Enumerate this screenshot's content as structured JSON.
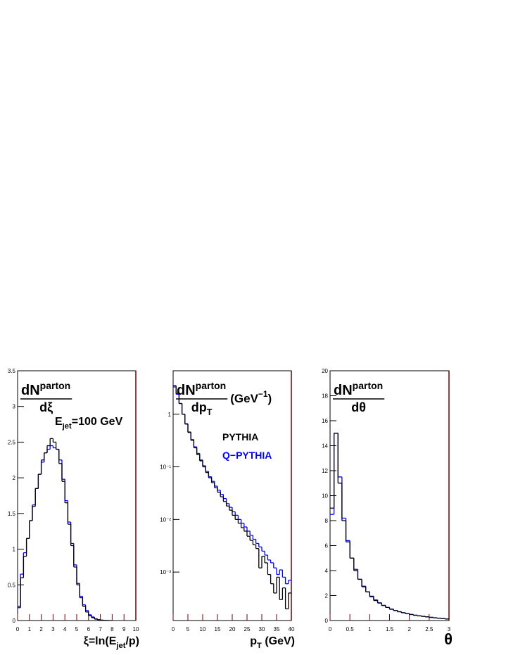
{
  "chart_data": [
    {
      "type": "histogram",
      "y_label": {
        "num": "dN",
        "sup": "parton",
        "den": "dξ"
      },
      "x_label": {
        "main": "ξ=ln(E",
        "sub": "jet",
        "end": "/p)"
      },
      "annotation": {
        "main": "E",
        "sub": "jet",
        "end": "=100 GeV"
      },
      "xlim": [
        0,
        10
      ],
      "xticks": [
        0,
        1,
        2,
        3,
        4,
        5,
        6,
        7,
        8,
        9,
        10
      ],
      "ylim": [
        0,
        3.5
      ],
      "yticks": [
        0,
        0.5,
        1,
        1.5,
        2,
        2.5,
        3,
        3.5
      ],
      "bins": [
        0,
        0.25,
        0.5,
        0.75,
        1,
        1.25,
        1.5,
        1.75,
        2,
        2.25,
        2.5,
        2.75,
        3,
        3.25,
        3.5,
        3.75,
        4,
        4.25,
        4.5,
        4.75,
        5,
        5.25,
        5.5,
        5.75,
        6,
        6.25,
        6.5,
        6.75,
        7,
        7.25,
        7.5,
        7.75,
        8
      ],
      "series": [
        {
          "color": "#000000",
          "values": [
            0.2,
            0.6,
            0.9,
            1.15,
            1.4,
            1.6,
            1.85,
            2.05,
            2.25,
            2.35,
            2.45,
            2.55,
            2.5,
            2.4,
            2.2,
            1.95,
            1.65,
            1.35,
            1.05,
            0.75,
            0.5,
            0.32,
            0.2,
            0.12,
            0.07,
            0.04,
            0.02,
            0.01,
            0.005,
            0.002,
            0.001,
            0
          ]
        },
        {
          "color": "#0000ff",
          "values": [
            0.18,
            0.65,
            0.95,
            1.15,
            1.4,
            1.62,
            1.85,
            2.05,
            2.22,
            2.35,
            2.4,
            2.45,
            2.42,
            2.4,
            2.25,
            1.98,
            1.68,
            1.38,
            1.08,
            0.78,
            0.52,
            0.34,
            0.22,
            0.14,
            0.08,
            0.05,
            0.025,
            0.012,
            0.006,
            0.003,
            0.001,
            0
          ]
        }
      ]
    },
    {
      "type": "histogram",
      "log_y": true,
      "y_label": {
        "num": "dN",
        "sup": "parton",
        "den": "dp",
        "den_sub": "T",
        "unit": "(GeV",
        "unit_sup": "−1",
        "unit_end": ")"
      },
      "x_label": {
        "main": "p",
        "sub": "T",
        "end": " (GeV)"
      },
      "xlim": [
        0,
        40
      ],
      "xticks": [
        0,
        5,
        10,
        15,
        20,
        25,
        30,
        35,
        40
      ],
      "ylim": [
        0.00012,
        6.7
      ],
      "yticks": [
        {
          "value": 0.001,
          "label": "10⁻³"
        },
        {
          "value": 0.01,
          "label": "10⁻²"
        },
        {
          "value": 0.1,
          "label": "10⁻¹"
        },
        1
      ],
      "bins": [
        0,
        1,
        2,
        3,
        4,
        5,
        6,
        7,
        8,
        9,
        10,
        11,
        12,
        13,
        14,
        15,
        16,
        17,
        18,
        19,
        20,
        21,
        22,
        23,
        24,
        25,
        26,
        27,
        28,
        29,
        30,
        31,
        32,
        33,
        34,
        35,
        36,
        37,
        38,
        39,
        40
      ],
      "series": [
        {
          "name": "PYTHIA",
          "color": "#000000",
          "values": [
            3.5,
            2.5,
            1.6,
            1.0,
            0.65,
            0.45,
            0.32,
            0.23,
            0.17,
            0.13,
            0.1,
            0.078,
            0.062,
            0.05,
            0.04,
            0.033,
            0.027,
            0.022,
            0.018,
            0.015,
            0.012,
            0.01,
            0.0085,
            0.007,
            0.006,
            0.0048,
            0.004,
            0.0033,
            0.0028,
            0.0012,
            0.002,
            0.0015,
            0.0009,
            0.0006,
            0.0004,
            0.0008,
            0.0003,
            0.0005,
            0.0002,
            0.0004
          ]
        },
        {
          "name": "Q−PYTHIA",
          "color": "#0000ff",
          "values": [
            3.3,
            2.4,
            1.6,
            1.0,
            0.66,
            0.46,
            0.33,
            0.24,
            0.18,
            0.135,
            0.105,
            0.082,
            0.065,
            0.053,
            0.043,
            0.036,
            0.03,
            0.025,
            0.02,
            0.017,
            0.014,
            0.012,
            0.01,
            0.0085,
            0.0072,
            0.006,
            0.005,
            0.0042,
            0.0035,
            0.003,
            0.0025,
            0.0021,
            0.0017,
            0.0015,
            0.0012,
            0.0009,
            0.0011,
            0.0008,
            0.0006,
            0.0007
          ]
        }
      ]
    },
    {
      "type": "histogram",
      "y_label": {
        "num": "dN",
        "sup": "parton",
        "den": "dθ"
      },
      "x_label": {
        "main": "θ"
      },
      "xlim": [
        0,
        3
      ],
      "xticks": [
        0,
        0.5,
        1,
        1.5,
        2,
        2.5,
        3
      ],
      "ylim": [
        0,
        20
      ],
      "yticks": [
        0,
        2,
        4,
        6,
        8,
        10,
        12,
        14,
        16,
        18,
        20
      ],
      "bins": [
        0,
        0.1,
        0.2,
        0.3,
        0.4,
        0.5,
        0.6,
        0.7,
        0.8,
        0.9,
        1,
        1.1,
        1.2,
        1.3,
        1.4,
        1.5,
        1.6,
        1.7,
        1.8,
        1.9,
        2,
        2.1,
        2.2,
        2.3,
        2.4,
        2.5,
        2.6,
        2.7,
        2.8,
        2.9,
        3
      ],
      "series": [
        {
          "color": "#000000",
          "values": [
            9,
            15,
            11,
            8,
            6.3,
            5.0,
            4.0,
            3.3,
            2.7,
            2.3,
            1.9,
            1.6,
            1.4,
            1.2,
            1.05,
            0.9,
            0.8,
            0.7,
            0.62,
            0.55,
            0.48,
            0.42,
            0.37,
            0.33,
            0.29,
            0.25,
            0.22,
            0.19,
            0.16,
            0.12
          ]
        },
        {
          "color": "#0000ff",
          "values": [
            8.5,
            15,
            11.5,
            8.2,
            6.4,
            5.0,
            4.1,
            3.3,
            2.75,
            2.3,
            1.95,
            1.65,
            1.42,
            1.22,
            1.05,
            0.92,
            0.81,
            0.71,
            0.63,
            0.56,
            0.49,
            0.43,
            0.38,
            0.34,
            0.3,
            0.26,
            0.22,
            0.19,
            0.16,
            0.12
          ]
        }
      ]
    }
  ]
}
